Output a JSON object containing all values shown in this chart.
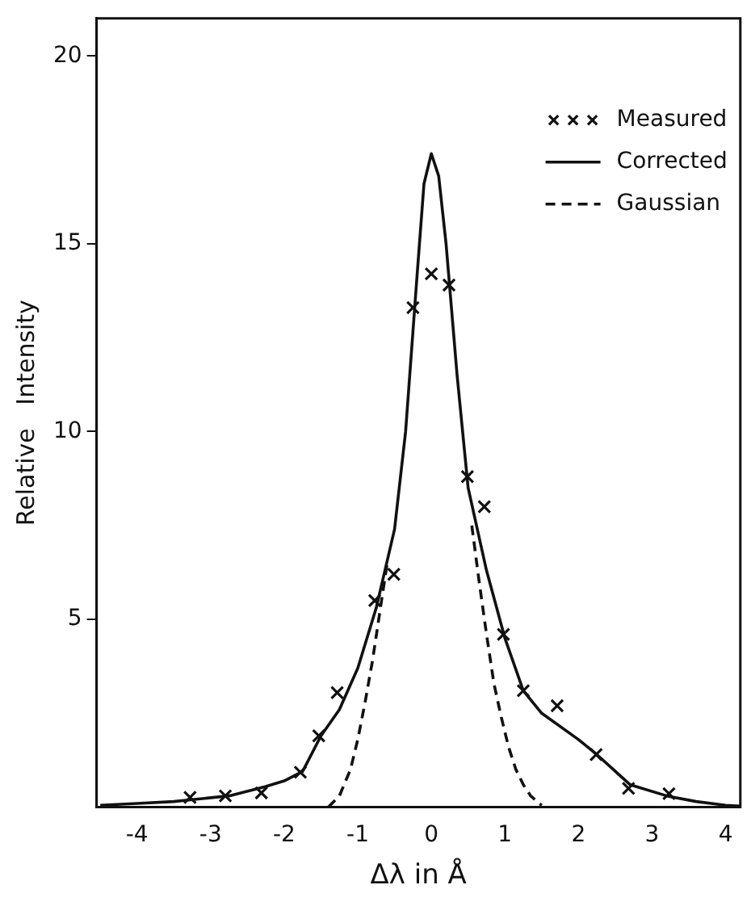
{
  "chart_data": {
    "type": "line",
    "xlabel": "Δλ in Å",
    "ylabel": "Relative   Intensity",
    "xlim": [
      -4.55,
      4.2
    ],
    "ylim": [
      0,
      21
    ],
    "xticks": [
      -4,
      -3,
      -2,
      -1,
      0,
      1,
      2,
      3,
      4
    ],
    "yticks": [
      5,
      10,
      15,
      20
    ],
    "grid": false,
    "legend": "top right",
    "series": [
      {
        "name": "Measured",
        "type": "scatter",
        "color": "#111111",
        "marker": "cross",
        "x": [
          -3.28,
          -2.8,
          -2.31,
          -1.78,
          -1.53,
          -1.28,
          -0.77,
          -0.51,
          -0.25,
          0,
          0.24,
          0.49,
          0.72,
          0.98,
          1.25,
          1.71,
          2.24,
          2.68,
          3.23
        ],
        "values": [
          0.26,
          0.3,
          0.38,
          0.93,
          1.9,
          3.05,
          5.5,
          6.2,
          13.3,
          14.2,
          13.9,
          8.8,
          8,
          4.6,
          3.1,
          2.7,
          1.4,
          0.5,
          0.36
        ]
      },
      {
        "name": "Corrected",
        "type": "line",
        "color": "#111111",
        "line_style": "solid",
        "marker": "none",
        "x": [
          -4.5,
          -4,
          -3.5,
          -3.25,
          -2.75,
          -2.25,
          -2,
          -1.75,
          -1.5,
          -1.25,
          -1,
          -0.75,
          -0.5,
          -0.35,
          -0.2,
          -0.1,
          0,
          0.1,
          0.2,
          0.35,
          0.5,
          0.75,
          1,
          1.25,
          1.5,
          2,
          2.25,
          2.7,
          3.2,
          3.6,
          4,
          4.2
        ],
        "values": [
          0.05,
          0.1,
          0.15,
          0.2,
          0.3,
          0.55,
          0.7,
          0.95,
          1.9,
          2.6,
          3.7,
          5.3,
          7.4,
          10,
          14,
          16.6,
          17.4,
          16.8,
          15,
          11.5,
          8.5,
          6.3,
          4.5,
          3.1,
          2.5,
          1.8,
          1.4,
          0.6,
          0.3,
          0.15,
          0.05,
          0.03
        ]
      },
      {
        "name": "Gaussian",
        "type": "line",
        "color": "#111111",
        "line_style": "dashed",
        "marker": "none",
        "x": [
          -1.4,
          -1.25,
          -1.1,
          -1,
          -0.9,
          -0.8,
          -0.7,
          -0.6,
          0,
          0.55,
          0.65,
          0.75,
          0.85,
          0.95,
          1.05,
          1.15,
          1.25,
          1.35,
          1.5
        ],
        "values": [
          0,
          0.3,
          1,
          1.8,
          2.8,
          3.9,
          5.2,
          6.5,
          null,
          7.5,
          6,
          4.6,
          3.3,
          2.4,
          1.6,
          1,
          0.6,
          0.3,
          0.05
        ]
      }
    ]
  }
}
